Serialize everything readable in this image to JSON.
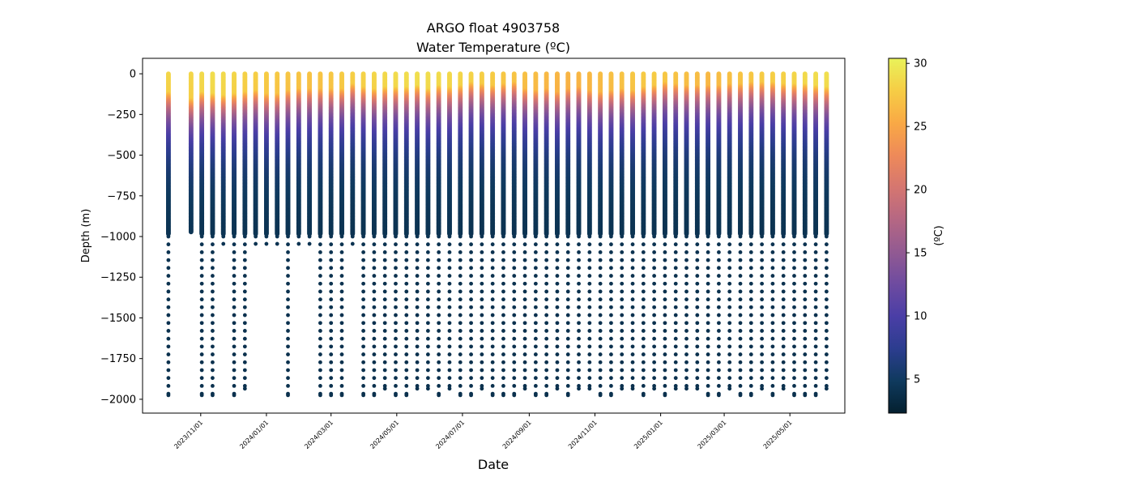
{
  "chart_data": {
    "type": "scatter",
    "title": "ARGO float 4903758",
    "subtitle": "Water Temperature (ºC)",
    "xlabel": "Date",
    "ylabel": "Depth (m)",
    "xlim": [
      "2023-09-08",
      "2025-06-21"
    ],
    "ylim": [
      -2085,
      95
    ],
    "yticks": [
      0,
      -250,
      -500,
      -750,
      -1000,
      -1250,
      -1500,
      -1750,
      -2000
    ],
    "ytick_labels": [
      "0",
      "−250",
      "−500",
      "−750",
      "−1000",
      "−1250",
      "−1500",
      "−1750",
      "−2000"
    ],
    "xticks": [
      "2023-11-01",
      "2024-01-01",
      "2024-03-01",
      "2024-05-01",
      "2024-07-01",
      "2024-09-01",
      "2024-11-01",
      "2025-01-01",
      "2025-03-01",
      "2025-05-01"
    ],
    "xtick_labels": [
      "2023/11/01",
      "2024/01/01",
      "2024/03/01",
      "2024/05/01",
      "2024/07/01",
      "2024/09/01",
      "2024/11/01",
      "2025/01/01",
      "2025/03/01",
      "2025/05/01"
    ],
    "grid": false,
    "colorbar": {
      "label": "(ºC)",
      "min": 2.3,
      "max": 30.4,
      "ticks": [
        5,
        10,
        15,
        20,
        25,
        30
      ],
      "colormap": "thermal",
      "stops": [
        "#04202f",
        "#0f3a5e",
        "#2c3d8f",
        "#4a3ea6",
        "#6e4ba0",
        "#925a92",
        "#b56783",
        "#d57670",
        "#ee8a59",
        "#f9a945",
        "#f6cd45",
        "#e9f25a"
      ]
    },
    "profile_dates": [
      "2023-10-02",
      "2023-10-23",
      "2023-11-02",
      "2023-11-12",
      "2023-11-22",
      "2023-12-02",
      "2023-12-12",
      "2023-12-22",
      "2024-01-01",
      "2024-01-11",
      "2024-01-21",
      "2024-01-31",
      "2024-02-10",
      "2024-02-20",
      "2024-03-01",
      "2024-03-11",
      "2024-03-21",
      "2024-03-31",
      "2024-04-10",
      "2024-04-20",
      "2024-04-30",
      "2024-05-10",
      "2024-05-20",
      "2024-05-30",
      "2024-06-09",
      "2024-06-19",
      "2024-06-29",
      "2024-07-09",
      "2024-07-19",
      "2024-07-29",
      "2024-08-08",
      "2024-08-18",
      "2024-08-28",
      "2024-09-07",
      "2024-09-17",
      "2024-09-27",
      "2024-10-07",
      "2024-10-17",
      "2024-10-27",
      "2024-11-06",
      "2024-11-16",
      "2024-11-26",
      "2024-12-06",
      "2024-12-16",
      "2024-12-26",
      "2025-01-05",
      "2025-01-15",
      "2025-01-25",
      "2025-02-04",
      "2025-02-14",
      "2025-02-24",
      "2025-03-06",
      "2025-03-16",
      "2025-03-26",
      "2025-04-05",
      "2025-04-15",
      "2025-04-25",
      "2025-05-05",
      "2025-05-15",
      "2025-05-25",
      "2025-06-04"
    ],
    "max_depth_m": [
      -1975,
      -975,
      -1975,
      -1975,
      -1045,
      -1975,
      -1935,
      -1045,
      -1045,
      -1045,
      -1975,
      -1045,
      -1045,
      -1975,
      -1975,
      -1975,
      -1045,
      -1975,
      -1975,
      -1935,
      -1975,
      -1975,
      -1935,
      -1935,
      -1975,
      -1935,
      -1975,
      -1975,
      -1935,
      -1975,
      -1975,
      -1975,
      -1935,
      -1975,
      -1975,
      -1935,
      -1975,
      -1935,
      -1935,
      -1975,
      -1975,
      -1935,
      -1935,
      -1975,
      -1935,
      -1975,
      -1935,
      -1935,
      -1935,
      -1975,
      -1975,
      -1935,
      -1975,
      -1975,
      -1935,
      -1975,
      -1935,
      -1975,
      -1975,
      -1975,
      -1935
    ],
    "surface_temp_c": [
      28.5,
      28.5,
      28.8,
      29.0,
      28.8,
      28.5,
      28.2,
      28.0,
      27.8,
      27.6,
      27.4,
      27.3,
      27.2,
      27.3,
      27.5,
      27.8,
      28.0,
      28.3,
      28.5,
      28.7,
      28.9,
      29.0,
      29.1,
      29.0,
      28.9,
      28.7,
      28.5,
      28.3,
      28.0,
      27.8,
      27.5,
      27.3,
      27.0,
      26.8,
      26.5,
      26.3,
      26.2,
      26.3,
      26.5,
      26.8,
      27.0,
      27.3,
      27.5,
      27.7,
      27.8,
      27.5,
      27.2,
      27.0,
      26.8,
      26.5,
      26.8,
      27.0,
      27.3,
      27.5,
      27.8,
      28.0,
      28.2,
      28.5,
      28.8,
      29.0,
      29.1
    ],
    "mixed_layer_depth_m": [
      120,
      160,
      120,
      130,
      140,
      130,
      120,
      110,
      130,
      130,
      110,
      100,
      100,
      100,
      100,
      100,
      70,
      90,
      100,
      90,
      90,
      90,
      80,
      100,
      80,
      90,
      80,
      60,
      70,
      80,
      70,
      60,
      100,
      110,
      100,
      120,
      100,
      90,
      110,
      120,
      110,
      100,
      110,
      90,
      80,
      60,
      70,
      80,
      80,
      80,
      80,
      70,
      70,
      60,
      60,
      60,
      70,
      70,
      70,
      80,
      90
    ]
  }
}
